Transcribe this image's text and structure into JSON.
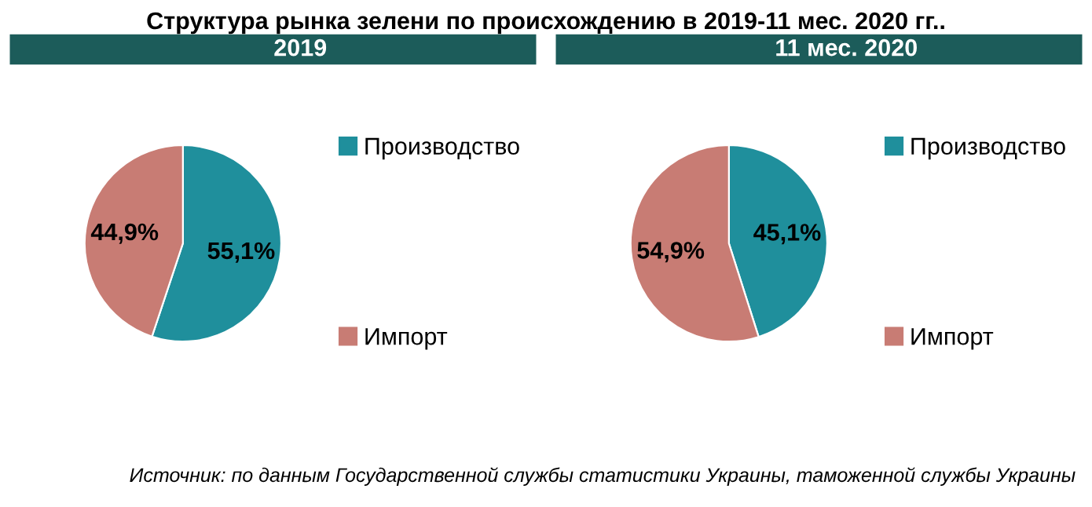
{
  "chart_data": [
    {
      "type": "pie",
      "title": "Структура рынка зелени по происхождению в 2019-11 мес. 2020 гг..",
      "subtitle": "2019",
      "categories": [
        "Производство",
        "Импорт"
      ],
      "values": [
        55.1,
        44.9
      ],
      "colors": [
        "#1f8f9c",
        "#c87c74"
      ],
      "value_labels": [
        "55,1%",
        "44,9%"
      ],
      "legend": "right"
    },
    {
      "type": "pie",
      "subtitle": "11 мес. 2020",
      "categories": [
        "Производство",
        "Импорт"
      ],
      "values": [
        45.1,
        54.9
      ],
      "colors": [
        "#1f8f9c",
        "#c87c74"
      ],
      "value_labels": [
        "45,1%",
        "54,9%"
      ],
      "legend": "right",
      "annotations": [
        "Источник: по данным Государственной службы статистики Украины, таможенной службы Украины"
      ]
    }
  ]
}
